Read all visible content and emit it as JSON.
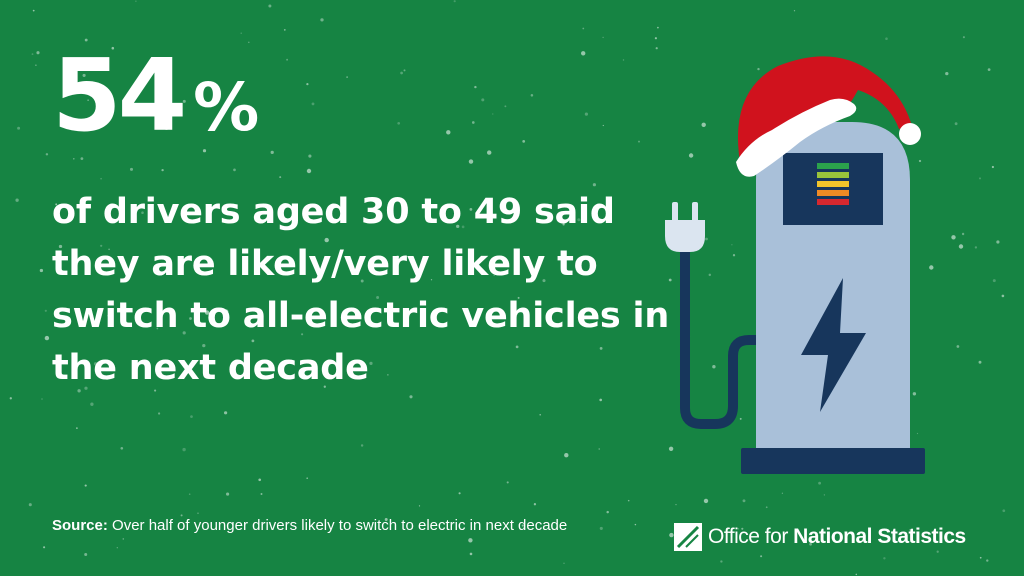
{
  "stat": {
    "number": "54",
    "unit": "%"
  },
  "headline": "of drivers aged 30 to 49 said they are likely/very likely to switch to all-electric vehicles in the next decade",
  "source": {
    "label": "Source:",
    "text": "Over half of younger drivers likely to switch to electric in next decade"
  },
  "logo": {
    "prefix": "Office for ",
    "bold": "National Statistics"
  },
  "colors": {
    "background": "#168443",
    "charger_body": "#a9c0d9",
    "charger_dark": "#17365c",
    "hat_red": "#d0121d",
    "hat_trim": "#ffffff",
    "battery_levels": [
      "#2ba24c",
      "#9ac43b",
      "#f1c42b",
      "#f08a24",
      "#d6282f"
    ]
  },
  "illustration": {
    "name": "ev-charger-with-santa-hat",
    "icons": [
      "plug-icon",
      "lightning-bolt-icon",
      "battery-level-icon",
      "santa-hat-icon"
    ]
  }
}
